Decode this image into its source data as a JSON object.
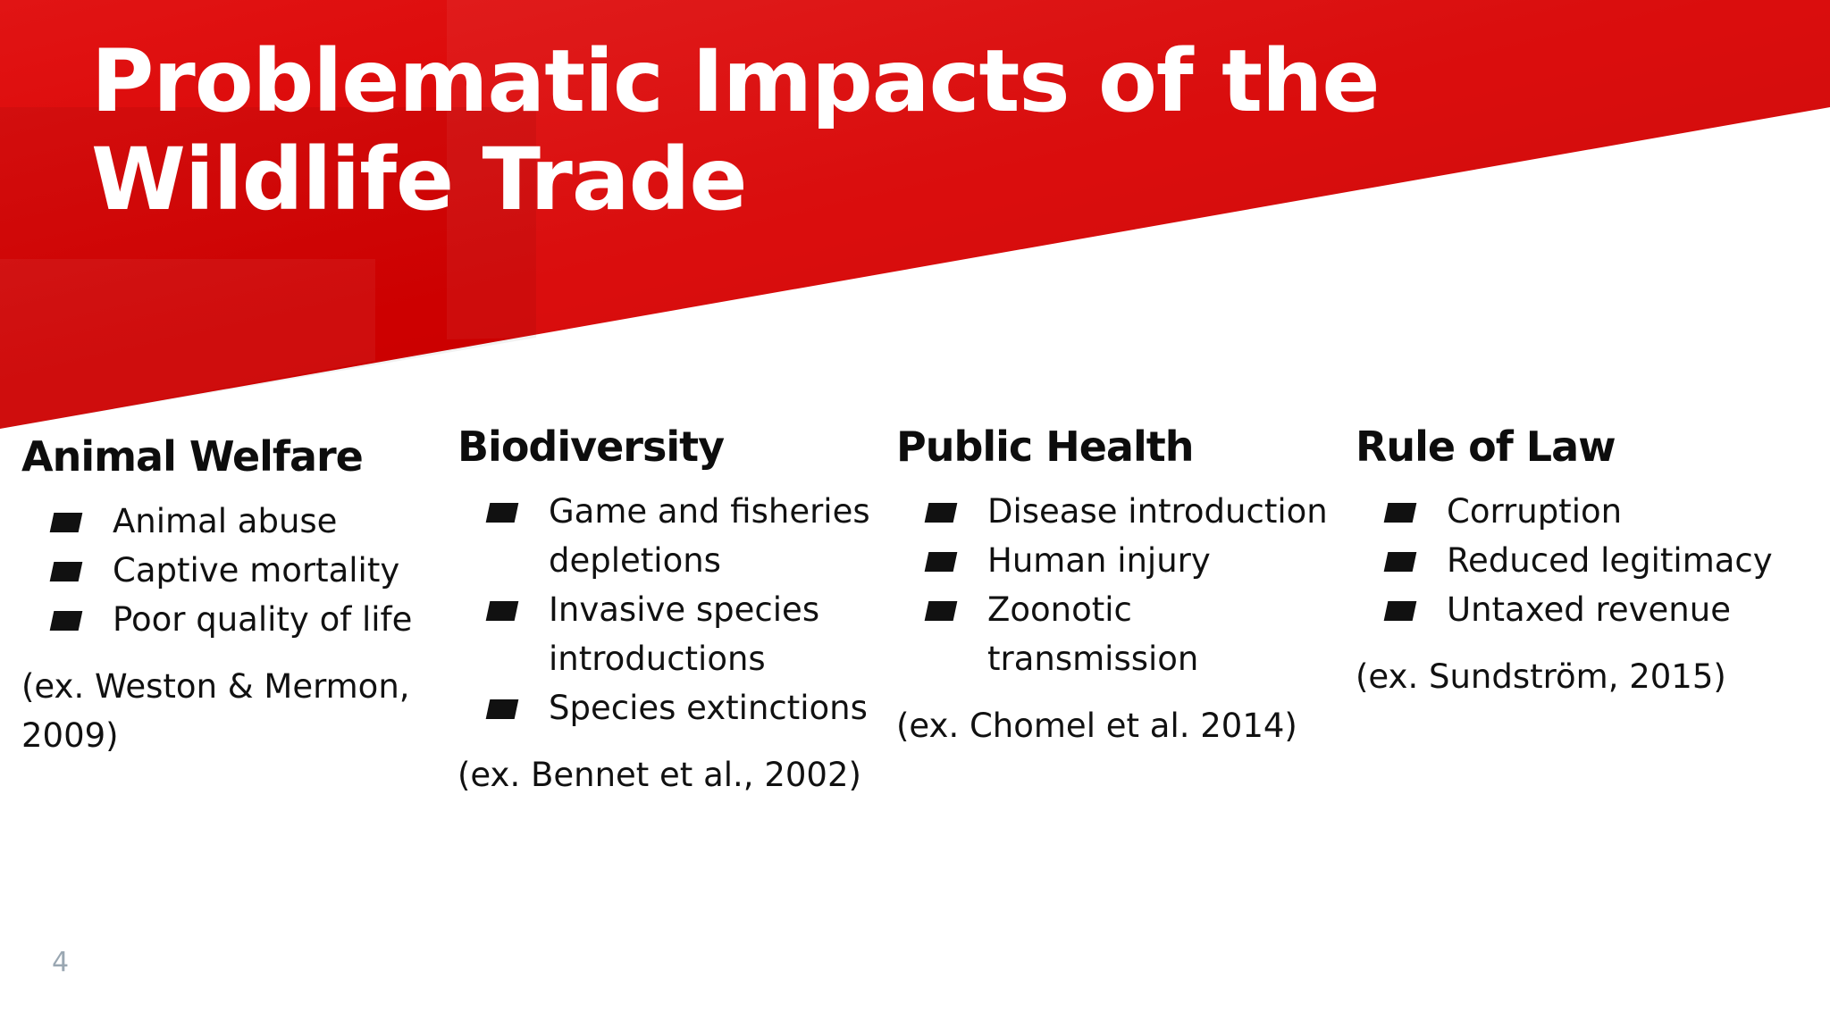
{
  "slide": {
    "title": "Problematic Impacts of the Wildlife Trade",
    "accent_color": "#d90000",
    "page_number": "4",
    "columns": [
      {
        "heading": "Animal Welfare",
        "items": [
          "Animal abuse",
          "Captive mortality",
          "Poor quality of life"
        ],
        "citation": "(ex. Weston & Mermon, 2009)"
      },
      {
        "heading": "Biodiversity",
        "items": [
          "Game and fisheries depletions",
          "Invasive species introductions",
          "Species extinctions"
        ],
        "citation": "(ex. Bennet et al., 2002)"
      },
      {
        "heading": "Public Health",
        "items": [
          "Disease introduction",
          "Human injury",
          "Zoonotic transmission"
        ],
        "citation": "(ex. Chomel et al. 2014)"
      },
      {
        "heading": "Rule of Law",
        "items": [
          "Corruption",
          "Reduced legitimacy",
          "Untaxed revenue"
        ],
        "citation": "(ex. Sundström, 2015)"
      }
    ]
  }
}
